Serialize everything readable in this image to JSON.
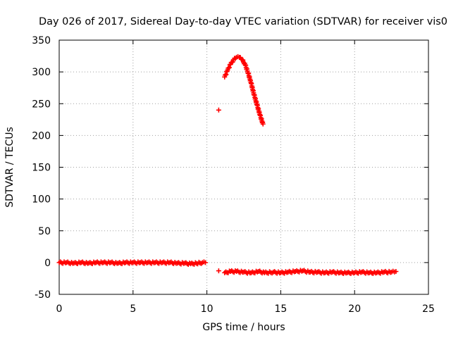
{
  "chart_data": {
    "type": "scatter",
    "title": "Day 026 of 2017, Sidereal Day-to-day VTEC variation (SDTVAR) for receiver vis0",
    "xlabel": "GPS time / hours",
    "ylabel": "SDTVAR / TECUs",
    "xlim": [
      0,
      25
    ],
    "ylim": [
      -50,
      350
    ],
    "xticks": [
      0,
      5,
      10,
      15,
      20,
      25
    ],
    "yticks": [
      -50,
      0,
      50,
      100,
      150,
      200,
      250,
      300,
      350
    ],
    "xtick_labels": [
      "0",
      "5",
      "10",
      "15",
      "20",
      "25"
    ],
    "ytick_labels": [
      "-50",
      "0",
      "50",
      "100",
      "150",
      "200",
      "250",
      "300",
      "350"
    ],
    "grid": true,
    "legend": "none",
    "series": [
      {
        "name": "SDTVAR",
        "color": "#ff0000",
        "marker": "plus",
        "segments": [
          {
            "description": "near-zero baseline",
            "points": [
              [
                0.0,
                0
              ],
              [
                0.5,
                0
              ],
              [
                1.0,
                -1
              ],
              [
                1.5,
                0
              ],
              [
                2.0,
                -1
              ],
              [
                2.5,
                0
              ],
              [
                3.0,
                0
              ],
              [
                3.5,
                0
              ],
              [
                4.0,
                -1
              ],
              [
                4.5,
                0
              ],
              [
                5.0,
                0
              ],
              [
                5.5,
                0
              ],
              [
                6.0,
                0
              ],
              [
                6.5,
                0
              ],
              [
                7.0,
                0
              ],
              [
                7.5,
                0
              ],
              [
                8.0,
                -1
              ],
              [
                8.5,
                -1
              ],
              [
                8.9,
                -2
              ],
              [
                9.7,
                0
              ],
              [
                9.9,
                0
              ]
            ]
          },
          {
            "description": "isolated points",
            "points": [
              [
                10.8,
                240
              ],
              [
                10.8,
                -13
              ]
            ]
          },
          {
            "description": "high arc",
            "points": [
              [
                11.2,
                292
              ],
              [
                11.4,
                303
              ],
              [
                11.6,
                312
              ],
              [
                11.8,
                319
              ],
              [
                12.0,
                323
              ],
              [
                12.2,
                323
              ],
              [
                12.4,
                319
              ],
              [
                12.6,
                311
              ],
              [
                12.8,
                298
              ],
              [
                13.0,
                282
              ],
              [
                13.2,
                264
              ],
              [
                13.4,
                248
              ],
              [
                13.6,
                232
              ],
              [
                13.8,
                218
              ]
            ]
          },
          {
            "description": "negative band",
            "points": [
              [
                11.2,
                -16
              ],
              [
                11.6,
                -14
              ],
              [
                12.0,
                -14
              ],
              [
                12.5,
                -15
              ],
              [
                13.0,
                -16
              ],
              [
                13.5,
                -14
              ],
              [
                13.9,
                -16
              ],
              [
                14.5,
                -15
              ],
              [
                15.0,
                -16
              ],
              [
                15.5,
                -15
              ],
              [
                16.0,
                -14
              ],
              [
                16.5,
                -13
              ],
              [
                17.0,
                -15
              ],
              [
                17.5,
                -15
              ],
              [
                18.0,
                -16
              ],
              [
                18.5,
                -15
              ],
              [
                19.0,
                -16
              ],
              [
                19.5,
                -16
              ],
              [
                20.0,
                -16
              ],
              [
                20.5,
                -15
              ],
              [
                21.0,
                -16
              ],
              [
                21.5,
                -16
              ],
              [
                22.0,
                -15
              ],
              [
                22.5,
                -15
              ],
              [
                22.8,
                -14
              ]
            ]
          }
        ]
      }
    ]
  }
}
